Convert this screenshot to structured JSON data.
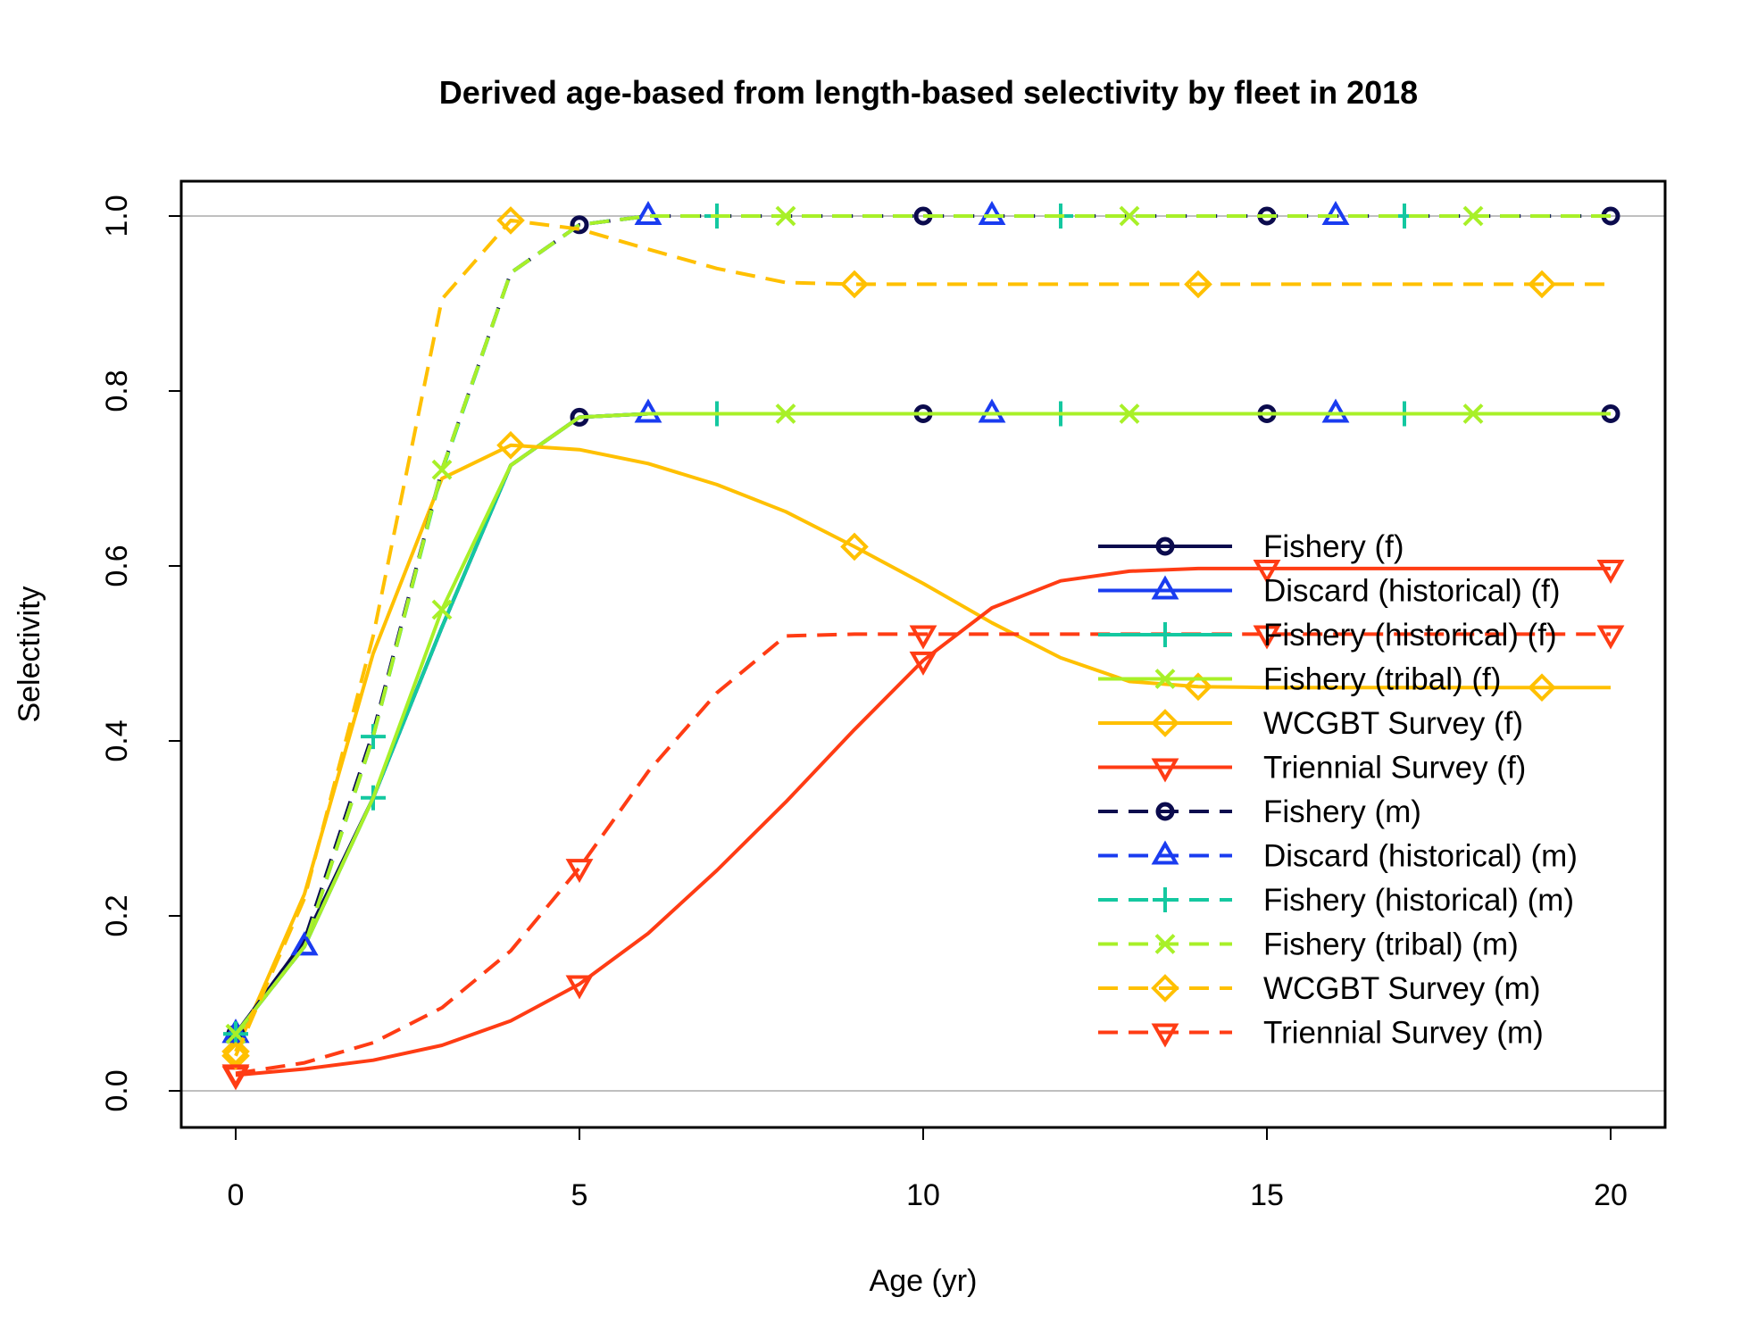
{
  "chart_data": {
    "type": "line",
    "title": "Derived age-based from length-based selectivity by fleet in 2018",
    "xlabel": "Age (yr)",
    "ylabel": "Selectivity",
    "xlim": [
      0,
      20
    ],
    "ylim": [
      0,
      1
    ],
    "xticks": [
      "0",
      "5",
      "10",
      "15",
      "20"
    ],
    "yticks": [
      "0.0",
      "0.2",
      "0.4",
      "0.6",
      "0.8",
      "1.0"
    ],
    "hlines": [
      0,
      1
    ],
    "grid": false,
    "legend_position": "right",
    "x": [
      0,
      1,
      2,
      3,
      4,
      5,
      6,
      7,
      8,
      9,
      10,
      11,
      12,
      13,
      14,
      15,
      16,
      17,
      18,
      19,
      20
    ],
    "series": [
      {
        "name": "Fishery (f)",
        "color": "#0b0b4d",
        "dash": "solid",
        "marker": "circle",
        "marker_offset": 0,
        "values": [
          0.065,
          0.172,
          0.335,
          0.53,
          0.715,
          0.77,
          0.774,
          0.774,
          0.774,
          0.774,
          0.774,
          0.774,
          0.774,
          0.774,
          0.774,
          0.774,
          0.774,
          0.774,
          0.774,
          0.774,
          0.774
        ]
      },
      {
        "name": "Discard (historical) (f)",
        "color": "#1a3cf0",
        "dash": "solid",
        "marker": "triangle-up",
        "marker_offset": 1,
        "values": [
          0.065,
          0.165,
          0.335,
          0.53,
          0.715,
          0.77,
          0.774,
          0.774,
          0.774,
          0.774,
          0.774,
          0.774,
          0.774,
          0.774,
          0.774,
          0.774,
          0.774,
          0.774,
          0.774,
          0.774,
          0.774
        ]
      },
      {
        "name": "Fishery (historical) (f)",
        "color": "#14c8a0",
        "dash": "solid",
        "marker": "plus",
        "marker_offset": 2,
        "values": [
          0.065,
          0.165,
          0.335,
          0.53,
          0.715,
          0.77,
          0.774,
          0.774,
          0.774,
          0.774,
          0.774,
          0.774,
          0.774,
          0.774,
          0.774,
          0.774,
          0.774,
          0.774,
          0.774,
          0.774,
          0.774
        ]
      },
      {
        "name": "Fishery (tribal) (f)",
        "color": "#a8f028",
        "dash": "solid",
        "marker": "x",
        "marker_offset": 3,
        "values": [
          0.065,
          0.165,
          0.335,
          0.55,
          0.715,
          0.77,
          0.774,
          0.774,
          0.774,
          0.774,
          0.774,
          0.774,
          0.774,
          0.774,
          0.774,
          0.774,
          0.774,
          0.774,
          0.774,
          0.774,
          0.774
        ]
      },
      {
        "name": "WCGBT Survey (f)",
        "color": "#ffc000",
        "dash": "solid",
        "marker": "diamond",
        "marker_offset": 4,
        "values": [
          0.045,
          0.225,
          0.5,
          0.7,
          0.738,
          0.733,
          0.717,
          0.693,
          0.662,
          0.622,
          0.58,
          0.535,
          0.495,
          0.468,
          0.462,
          0.461,
          0.461,
          0.461,
          0.461,
          0.461,
          0.461
        ]
      },
      {
        "name": "Triennial Survey (f)",
        "color": "#ff3c14",
        "dash": "solid",
        "marker": "triangle-down",
        "marker_offset": 5,
        "values": [
          0.018,
          0.025,
          0.035,
          0.052,
          0.08,
          0.122,
          0.18,
          0.252,
          0.33,
          0.413,
          0.492,
          0.552,
          0.583,
          0.594,
          0.597,
          0.597,
          0.597,
          0.597,
          0.597,
          0.597,
          0.597
        ]
      },
      {
        "name": "Fishery (m)",
        "color": "#0b0b4d",
        "dash": "dashed",
        "marker": "circle",
        "marker_offset": 0,
        "values": [
          0.065,
          0.172,
          0.41,
          0.71,
          0.935,
          0.99,
          1.0,
          1.0,
          1.0,
          1.0,
          1.0,
          1.0,
          1.0,
          1.0,
          1.0,
          1.0,
          1.0,
          1.0,
          1.0,
          1.0,
          1.0
        ]
      },
      {
        "name": "Discard (historical) (m)",
        "color": "#1a3cf0",
        "dash": "dashed",
        "marker": "triangle-up",
        "marker_offset": 1,
        "values": [
          0.065,
          0.165,
          0.405,
          0.71,
          0.935,
          0.99,
          1.0,
          1.0,
          1.0,
          1.0,
          1.0,
          1.0,
          1.0,
          1.0,
          1.0,
          1.0,
          1.0,
          1.0,
          1.0,
          1.0,
          1.0
        ]
      },
      {
        "name": "Fishery (historical) (m)",
        "color": "#14c8a0",
        "dash": "dashed",
        "marker": "plus",
        "marker_offset": 2,
        "values": [
          0.065,
          0.165,
          0.405,
          0.708,
          0.935,
          0.99,
          1.0,
          1.0,
          1.0,
          1.0,
          1.0,
          1.0,
          1.0,
          1.0,
          1.0,
          1.0,
          1.0,
          1.0,
          1.0,
          1.0,
          1.0
        ]
      },
      {
        "name": "Fishery (tribal) (m)",
        "color": "#a8f028",
        "dash": "dashed",
        "marker": "x",
        "marker_offset": 3,
        "values": [
          0.065,
          0.165,
          0.405,
          0.71,
          0.935,
          0.99,
          1.0,
          1.0,
          1.0,
          1.0,
          1.0,
          1.0,
          1.0,
          1.0,
          1.0,
          1.0,
          1.0,
          1.0,
          1.0,
          1.0,
          1.0
        ]
      },
      {
        "name": "WCGBT Survey (m)",
        "color": "#ffc000",
        "dash": "dashed",
        "marker": "diamond",
        "marker_offset": 4,
        "values": [
          0.04,
          0.22,
          0.52,
          0.905,
          0.995,
          0.985,
          0.962,
          0.94,
          0.924,
          0.922,
          0.922,
          0.922,
          0.922,
          0.922,
          0.922,
          0.922,
          0.922,
          0.922,
          0.922,
          0.922,
          0.922
        ]
      },
      {
        "name": "Triennial Survey (m)",
        "color": "#ff3c14",
        "dash": "dashed",
        "marker": "triangle-down",
        "marker_offset": 5,
        "values": [
          0.02,
          0.032,
          0.055,
          0.095,
          0.16,
          0.255,
          0.365,
          0.455,
          0.52,
          0.522,
          0.522,
          0.522,
          0.522,
          0.522,
          0.522,
          0.522,
          0.522,
          0.522,
          0.522,
          0.522,
          0.522
        ]
      }
    ]
  }
}
